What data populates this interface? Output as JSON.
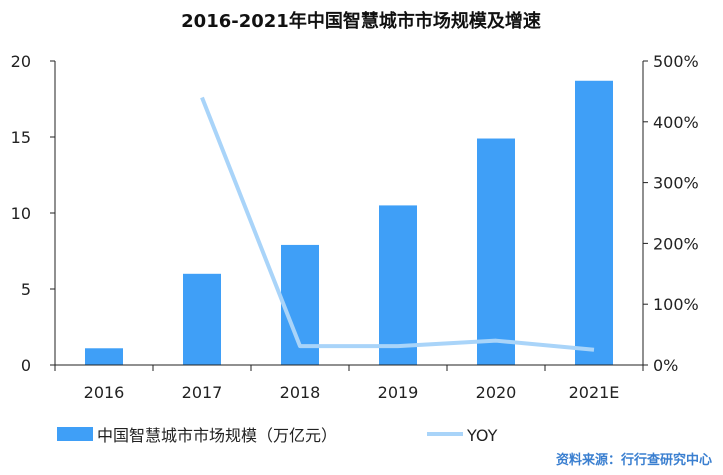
{
  "chart_data": {
    "type": "bar",
    "title": "2016-2021年中国智慧城市市场规模及增速",
    "categories": [
      "2016",
      "2017",
      "2018",
      "2019",
      "2020",
      "2021E"
    ],
    "series": [
      {
        "name": "中国智慧城市市场规模（万亿元）",
        "type": "bar",
        "axis": "left",
        "values": [
          1.1,
          6.0,
          7.9,
          10.5,
          14.9,
          18.7
        ]
      },
      {
        "name": "YOY",
        "type": "line",
        "axis": "right",
        "values": [
          null,
          440,
          31,
          31,
          40,
          25
        ]
      }
    ],
    "y_left": {
      "range": [
        0,
        20
      ],
      "ticks": [
        0,
        5,
        10,
        15,
        20
      ],
      "tick_labels": [
        "0",
        "5",
        "10",
        "15",
        "20"
      ]
    },
    "y_right": {
      "range": [
        0,
        500
      ],
      "ticks": [
        0,
        100,
        200,
        300,
        400,
        500
      ],
      "tick_labels": [
        "0%",
        "100%",
        "200%",
        "300%",
        "400%",
        "500%"
      ]
    },
    "grid": false,
    "legend_position": "bottom-left",
    "colors": {
      "bar": "#3f9ff7",
      "line": "#a9d4f9",
      "axis": "#222222",
      "source": "#3a7fd0"
    },
    "source": "资料来源：行行查研究中心"
  }
}
